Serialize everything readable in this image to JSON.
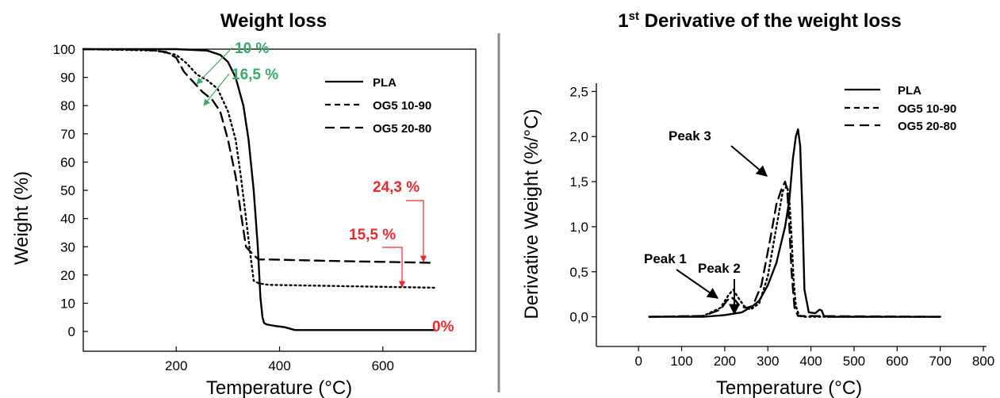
{
  "divider_color": "#8c8c8c",
  "colors": {
    "green": "#3aaa6a",
    "red": "#e8292e",
    "line": "#000000"
  },
  "chart_data": [
    {
      "type": "line",
      "title": "Weight loss",
      "xlabel": "Temperature (°C)",
      "ylabel": "Weight (%)",
      "xlim": [
        20,
        780
      ],
      "ylim": [
        -7,
        100
      ],
      "x_ticks": [
        "200",
        "400",
        "600"
      ],
      "y_ticks": [
        "0",
        "10",
        "20",
        "30",
        "40",
        "50",
        "60",
        "70",
        "80",
        "90",
        "100"
      ],
      "grid": false,
      "legend_position": "top-right",
      "series": [
        {
          "name": "PLA",
          "style": "solid",
          "x": [
            20,
            200,
            260,
            285,
            300,
            315,
            330,
            340,
            350,
            358,
            363,
            367,
            370,
            375,
            390,
            410,
            430,
            700
          ],
          "y": [
            100,
            100,
            99.5,
            98,
            95.5,
            90,
            80,
            68,
            50,
            30,
            12,
            5,
            3,
            2.5,
            2,
            1.5,
            0.5,
            0.5
          ]
        },
        {
          "name": "OG5 10-90",
          "style": "dotted",
          "x": [
            20,
            160,
            200,
            220,
            240,
            260,
            280,
            300,
            315,
            325,
            335,
            345,
            350,
            360,
            380,
            700
          ],
          "y": [
            100,
            99.5,
            98,
            95,
            91,
            89,
            86,
            78,
            68,
            55,
            40,
            25,
            18,
            17,
            16.5,
            15.5
          ]
        },
        {
          "name": "OG5 20-80",
          "style": "dashed",
          "x": [
            20,
            140,
            180,
            200,
            215,
            230,
            250,
            270,
            285,
            300,
            315,
            325,
            335,
            345,
            350,
            360,
            380,
            500,
            700
          ],
          "y": [
            100,
            99.8,
            99,
            97,
            92,
            89,
            85,
            82,
            78,
            68,
            55,
            42,
            30,
            28,
            27,
            25.5,
            25.5,
            25,
            24.3
          ]
        }
      ],
      "annotations": [
        {
          "text": "10 %",
          "color": "green"
        },
        {
          "text": "16,5 %",
          "color": "green"
        },
        {
          "text": "24,3 %",
          "color": "red"
        },
        {
          "text": "15,5 %",
          "color": "red"
        },
        {
          "text": "0%",
          "color": "red"
        }
      ]
    },
    {
      "type": "line",
      "title_main": "1",
      "title_sup": "st",
      "title_rest": " Derivative of the weight loss",
      "xlabel": "Temperature (°C)",
      "ylabel": "Derivative Weight (%/°C)",
      "xlim": [
        -50,
        800
      ],
      "ylim": [
        -0.1,
        2.6
      ],
      "x_ticks": [
        "0",
        "100",
        "200",
        "300",
        "400",
        "500",
        "600",
        "700",
        "800"
      ],
      "y_ticks": [
        "0,0",
        "0,5",
        "1,0",
        "1,5",
        "2,0",
        "2,5"
      ],
      "grid": false,
      "legend_position": "top-right",
      "series": [
        {
          "name": "PLA",
          "style": "solid",
          "x": [
            25,
            150,
            200,
            240,
            265,
            280,
            300,
            320,
            340,
            350,
            358,
            365,
            370,
            375,
            380,
            385,
            395,
            410,
            420,
            425,
            430,
            440,
            700
          ],
          "y": [
            0,
            0,
            0.02,
            0.05,
            0.12,
            0.18,
            0.35,
            0.6,
            1.0,
            1.3,
            1.75,
            2.0,
            2.08,
            1.9,
            1.2,
            0.3,
            0.05,
            0.04,
            0.08,
            0.07,
            0.01,
            0,
            0
          ]
        },
        {
          "name": "OG5 10-90",
          "style": "dotted",
          "x": [
            25,
            150,
            190,
            210,
            220,
            230,
            245,
            260,
            280,
            300,
            320,
            335,
            345,
            350,
            355,
            360,
            365,
            372,
            380,
            700
          ],
          "y": [
            0,
            0.01,
            0.1,
            0.25,
            0.3,
            0.22,
            0.12,
            0.08,
            0.15,
            0.45,
            1.0,
            1.4,
            1.45,
            1.3,
            0.9,
            0.4,
            0.12,
            0.02,
            0,
            0
          ]
        },
        {
          "name": "OG5 20-80",
          "style": "dashed",
          "x": [
            25,
            150,
            190,
            205,
            215,
            225,
            235,
            250,
            265,
            285,
            305,
            320,
            332,
            340,
            345,
            350,
            355,
            362,
            370,
            700
          ],
          "y": [
            0,
            0.01,
            0.08,
            0.18,
            0.22,
            0.18,
            0.12,
            0.1,
            0.12,
            0.35,
            0.85,
            1.25,
            1.42,
            1.5,
            1.4,
            1.0,
            0.5,
            0.1,
            0.01,
            0
          ]
        }
      ],
      "annotations": [
        {
          "text": "Peak 1"
        },
        {
          "text": "Peak 2"
        },
        {
          "text": "Peak 3"
        }
      ]
    }
  ]
}
